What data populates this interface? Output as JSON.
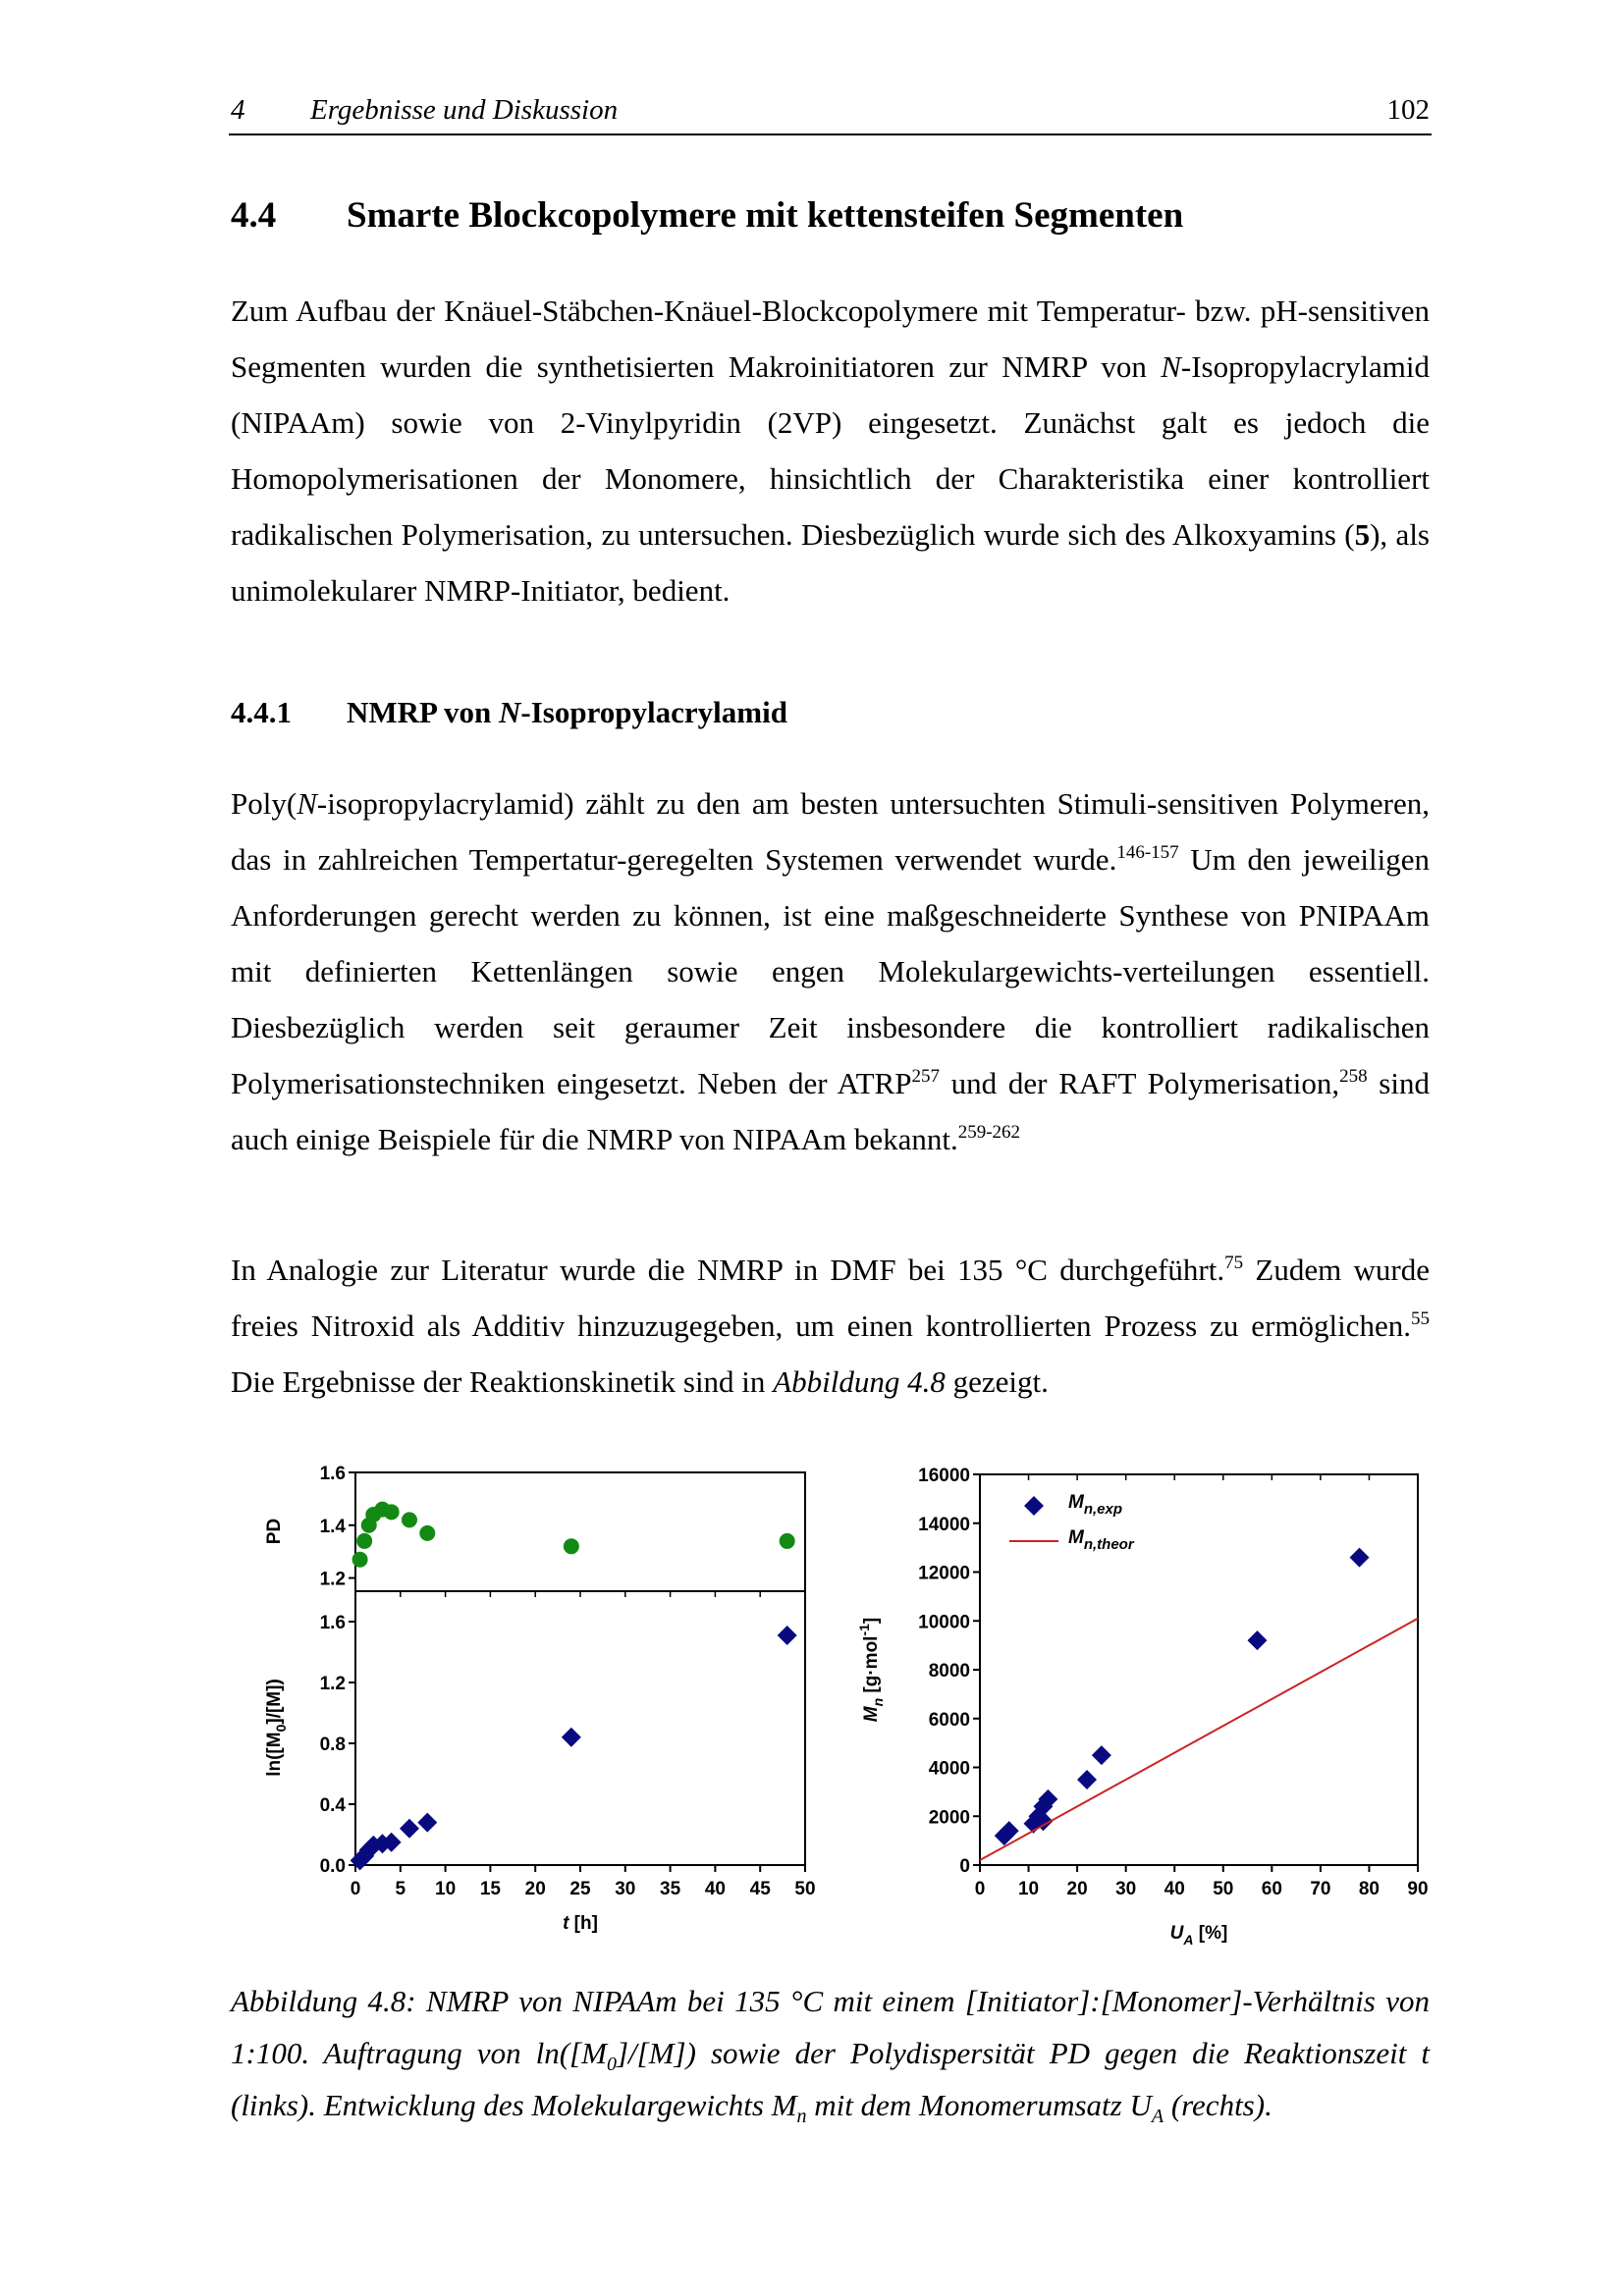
{
  "header": {
    "chapter": "4",
    "title": "Ergebnisse und Diskussion",
    "page": "102"
  },
  "section": {
    "number": "4.4",
    "title": "Smarte Blockcopolymere mit kettensteifen Segmenten",
    "paragraph": [
      "Zum Aufbau der Knäuel-Stäbchen-Knäuel-Blockcopolymere mit Temperatur- bzw. pH-sensitiven Segmenten wurden die synthetisierten Makroinitiatoren zur NMRP von ",
      "N",
      "-Isopropylacrylamid (NIPAAm) sowie von 2-Vinylpyridin (2VP) eingesetzt. Zunächst galt es jedoch die Homopolymerisationen der Monomere, hinsichtlich der Charakteristika einer kontrolliert radikalischen Polymerisation, zu untersuchen. Diesbezüglich wurde sich des Alkoxyamins ",
      "(",
      "5",
      "), als unimolekularer NMRP-Initiator, bedient."
    ]
  },
  "subsection": {
    "number": "4.4.1",
    "title": [
      "NMRP von ",
      "N",
      "-Isopropylacrylamid"
    ],
    "paragraphs": [
      [
        "Poly(",
        "N",
        "-isopropylacrylamid) zählt zu den am besten untersuchten Stimuli-sensitiven Polymeren, das in zahlreichen Tempertatur-geregelten Systemen verwendet wurde.",
        "146-157",
        " Um den jeweiligen Anforderungen gerecht werden zu können, ist eine maßgeschneiderte Synthese von PNIPAAm mit definierten Kettenlängen sowie engen Molekulargewichts-verteilungen essentiell. Diesbezüglich werden seit geraumer Zeit insbesondere die kontrolliert radikalischen Polymerisationstechniken eingesetzt. Neben der ATRP",
        "257",
        " und der RAFT Polymerisation,",
        "258",
        " sind auch einige Beispiele für die NMRP von NIPAAm bekannt.",
        "259-262"
      ],
      [
        "In Analogie zur Literatur wurde die NMRP in DMF bei 135 °C durchgeführt.",
        "75",
        " Zudem wurde freies Nitroxid als Additiv hinzuzugegeben, um einen kontrollierten Prozess zu ermöglichen.",
        "55",
        " Die Ergebnisse der Reaktionskinetik sind in ",
        "Abbildung 4.8",
        " gezeigt."
      ]
    ]
  },
  "caption": [
    "Abbildung 4.8: NMRP von NIPAAm bei 135 °C mit einem [Initiator]:[Monomer]-Verhältnis von 1:100. Auftragung von ln([M",
    "0",
    "]/[M]) sowie der Polydispersität PD gegen die Reaktionszeit t (links). Entwicklung des Molekulargewichts M",
    "n",
    " mit dem Monomerumsatz U",
    "A",
    " (rechts)."
  ],
  "chart_data": [
    {
      "type": "scatter",
      "xlabel": [
        "t",
        " [h]"
      ],
      "xlim": [
        0,
        50
      ],
      "xticks": [
        0,
        5,
        10,
        15,
        20,
        25,
        30,
        35,
        40,
        45,
        50
      ],
      "panels": [
        {
          "ylabel": [
            "PD"
          ],
          "ylim": [
            1.15,
            1.6
          ],
          "yticks": [
            1.2,
            1.4,
            1.6
          ],
          "series": [
            {
              "color": "#138a13",
              "marker": "circle",
              "x": [
                0.5,
                1,
                1.5,
                2,
                3,
                4,
                6,
                8,
                24,
                48
              ],
              "values": [
                1.27,
                1.34,
                1.4,
                1.44,
                1.46,
                1.45,
                1.42,
                1.37,
                1.32,
                1.34
              ]
            }
          ]
        },
        {
          "ylabel": [
            "ln([M",
            "0",
            "]/[M])"
          ],
          "ylim": [
            0,
            1.8
          ],
          "yticks": [
            {
              "value": 0,
              "label": "0.0"
            },
            0.4,
            0.8,
            1.2,
            1.6
          ],
          "series": [
            {
              "color": "#0a0a80",
              "marker": "diamond",
              "x": [
                0.5,
                1,
                1.5,
                2,
                3,
                4,
                6,
                8,
                24,
                48
              ],
              "values": [
                0.03,
                0.06,
                0.1,
                0.13,
                0.14,
                0.15,
                0.24,
                0.28,
                0.84,
                1.51
              ]
            }
          ]
        }
      ]
    },
    {
      "type": "scatter",
      "xlabel": [
        "U",
        "A",
        " [%]"
      ],
      "ylabel": [
        "M",
        "n",
        " [g·mol",
        "-1",
        "]"
      ],
      "xlim": [
        0,
        90
      ],
      "xticks": [
        0,
        10,
        20,
        30,
        40,
        50,
        60,
        70,
        80,
        90
      ],
      "ylim": [
        0,
        16000
      ],
      "yticks": [
        0,
        2000,
        4000,
        6000,
        8000,
        10000,
        12000,
        14000,
        16000
      ],
      "legend": "upper left",
      "series": [
        {
          "name": "Mn,exp",
          "color": "#0a0a80",
          "marker": "diamond",
          "x": [
            5,
            6,
            11,
            12,
            13,
            13,
            14,
            22,
            25,
            57,
            78
          ],
          "values": [
            1200,
            1400,
            1700,
            2000,
            1800,
            2400,
            2700,
            3500,
            4500,
            9200,
            12600
          ]
        },
        {
          "name": "Mn,theor",
          "color": "#cc2222",
          "type": "line",
          "x": [
            0,
            90
          ],
          "values": [
            200,
            10100
          ]
        }
      ]
    }
  ]
}
